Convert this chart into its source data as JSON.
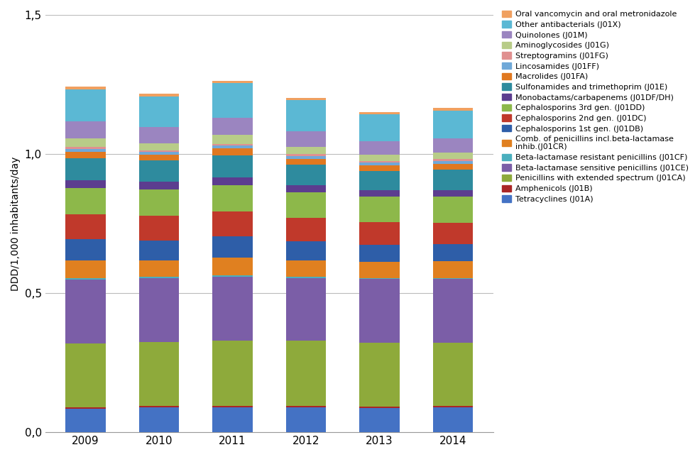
{
  "years": [
    "2009",
    "2010",
    "2011",
    "2012",
    "2013",
    "2014"
  ],
  "series": [
    {
      "label": "Tetracyclines (J01A)",
      "color": "#4472C4",
      "values": [
        0.085,
        0.09,
        0.09,
        0.09,
        0.088,
        0.09
      ]
    },
    {
      "label": "Amphenicols (J01B)",
      "color": "#AA2626",
      "values": [
        0.004,
        0.004,
        0.004,
        0.004,
        0.004,
        0.004
      ]
    },
    {
      "label": "Penicillins with extended spectrum (J01CA)",
      "color": "#8EAA3B",
      "values": [
        0.23,
        0.23,
        0.235,
        0.235,
        0.23,
        0.228
      ]
    },
    {
      "label": "Beta-lactamase sensitive penicillins (J01CE)",
      "color": "#7B5EA7",
      "values": [
        0.23,
        0.23,
        0.23,
        0.225,
        0.228,
        0.228
      ]
    },
    {
      "label": "Beta-lactamase resistant penicillins (J01CF)",
      "color": "#4AAFBE",
      "values": [
        0.004,
        0.004,
        0.004,
        0.004,
        0.004,
        0.004
      ]
    },
    {
      "label": "Comb. of penicillins incl.beta-lactamase\ninhib.(J01CR)",
      "color": "#E08020",
      "values": [
        0.065,
        0.06,
        0.065,
        0.06,
        0.058,
        0.06
      ]
    },
    {
      "label": "Cephalosporins 1st gen. (J01DB)",
      "color": "#2E5EA8",
      "values": [
        0.075,
        0.07,
        0.075,
        0.068,
        0.062,
        0.062
      ]
    },
    {
      "label": "Cephalosporins 2nd gen. (J01DC)",
      "color": "#C0392B",
      "values": [
        0.09,
        0.09,
        0.09,
        0.085,
        0.082,
        0.078
      ]
    },
    {
      "label": "Cephalosporins 3rd gen. (J01DD)",
      "color": "#8DB84A",
      "values": [
        0.095,
        0.095,
        0.095,
        0.092,
        0.09,
        0.092
      ]
    },
    {
      "label": "Monobactams/carbapenems (J01DF/DH)",
      "color": "#5C3D8F",
      "values": [
        0.028,
        0.028,
        0.028,
        0.026,
        0.025,
        0.025
      ]
    },
    {
      "label": "Sulfonamides and trimethoprim (J01E)",
      "color": "#2E8B9E",
      "values": [
        0.078,
        0.075,
        0.078,
        0.072,
        0.068,
        0.072
      ]
    },
    {
      "label": "Macrolides (J01FA)",
      "color": "#E07820",
      "values": [
        0.025,
        0.022,
        0.026,
        0.022,
        0.02,
        0.022
      ]
    },
    {
      "label": "Lincosamides (J01FF)",
      "color": "#6FA8D8",
      "values": [
        0.01,
        0.01,
        0.01,
        0.01,
        0.01,
        0.01
      ]
    },
    {
      "label": "Streptogramins (J01FG)",
      "color": "#E09090",
      "values": [
        0.006,
        0.006,
        0.006,
        0.006,
        0.006,
        0.006
      ]
    },
    {
      "label": "Aminoglycosides (J01G)",
      "color": "#B8CC88",
      "values": [
        0.03,
        0.025,
        0.032,
        0.026,
        0.022,
        0.024
      ]
    },
    {
      "label": "Quinolones (J01M)",
      "color": "#9B85C0",
      "values": [
        0.062,
        0.058,
        0.062,
        0.058,
        0.05,
        0.05
      ]
    },
    {
      "label": "Other antibacterials (J01X)",
      "color": "#5BB8D4",
      "values": [
        0.115,
        0.11,
        0.125,
        0.11,
        0.096,
        0.1
      ]
    },
    {
      "label": "Oral vancomycin and oral metronidazole",
      "color": "#F0A060",
      "values": [
        0.01,
        0.01,
        0.008,
        0.008,
        0.008,
        0.012
      ]
    }
  ],
  "ylabel": "DDD/1,000 inhabitants/day",
  "ylim": [
    0,
    1.5
  ],
  "yticks": [
    0.0,
    0.5,
    1.0,
    1.5
  ],
  "ytick_labels": [
    "0,0",
    "0,5",
    "1,0",
    "1,5"
  ],
  "background_color": "#FFFFFF",
  "grid_color": "#BBBBBB"
}
